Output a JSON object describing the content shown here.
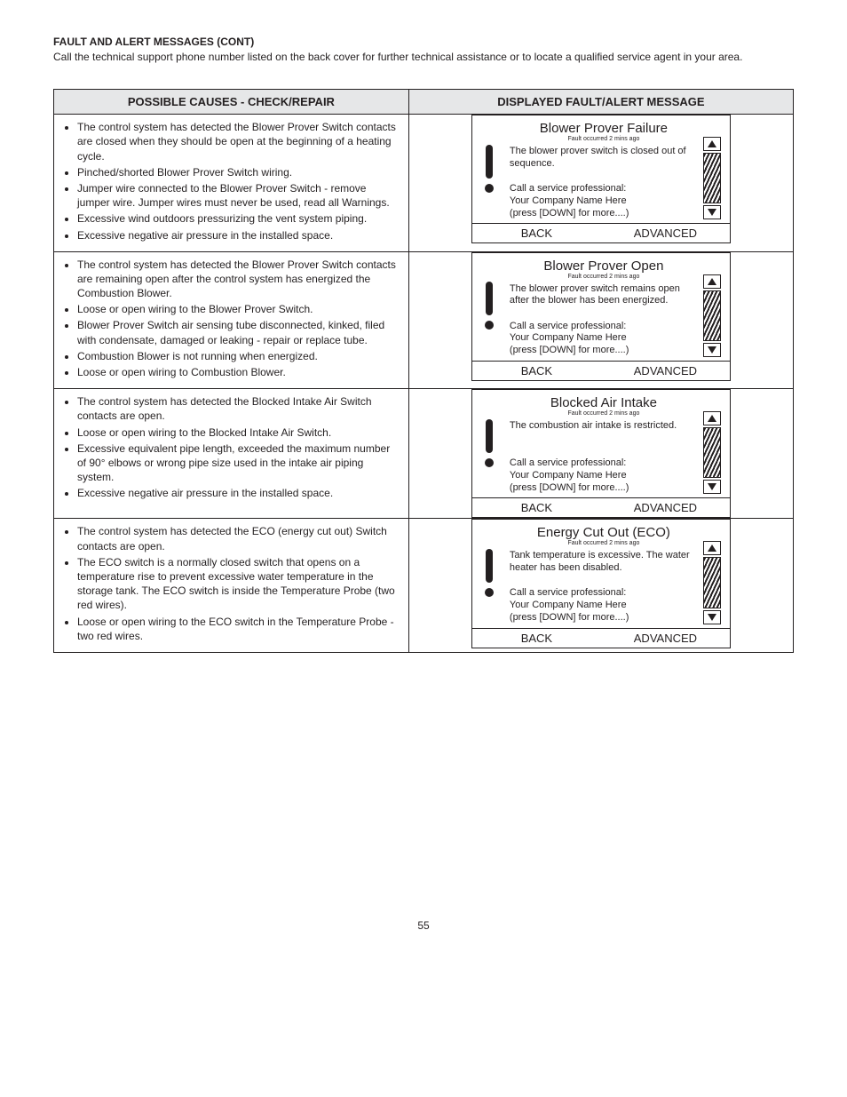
{
  "heading": "FAULT AND ALERT MESSAGES (CONT)",
  "intro": "Call the technical support phone number listed on the back cover for further technical assistance or to locate a qualified service agent in your area.",
  "table": {
    "headers": {
      "left": "POSSIBLE CAUSES - CHECK/REPAIR",
      "right": "DISPLAYED FAULT/ALERT MESSAGE"
    },
    "rows": [
      {
        "causes": [
          "The control system has detected the Blower Prover Switch contacts are closed when they should be open at the beginning of a heating cycle.",
          "Pinched/shorted Blower Prover Switch wiring.",
          "Jumper wire connected to the Blower Prover Switch - remove jumper wire. Jumper wires must never be used, read all Warnings.",
          "Excessive wind outdoors pressurizing the vent system piping.",
          "Excessive negative air pressure in the installed space."
        ],
        "lcd": {
          "title": "Blower Prover Failure",
          "sub": "Fault occurred 2 mins ago",
          "desc": "The blower prover switch is closed out of sequence.",
          "call1": "Call a service professional:",
          "call2": "Your Company Name Here",
          "call3": "(press [DOWN] for more....)",
          "back": "BACK",
          "advanced": "ADVANCED"
        }
      },
      {
        "causes": [
          "The control system has detected the Blower Prover Switch contacts are remaining open after the control system has energized the Combustion Blower.",
          "Loose or open wiring to the Blower Prover Switch.",
          "Blower Prover Switch air sensing tube disconnected, kinked, filed with condensate, damaged or leaking - repair or replace tube.",
          "Combustion Blower is not running when energized.",
          "Loose or open wiring to Combustion Blower."
        ],
        "lcd": {
          "title": "Blower Prover Open",
          "sub": "Fault occurred 2 mins ago",
          "desc": "The blower prover switch remains open after the blower has been energized.",
          "call1": "Call a service professional:",
          "call2": "Your Company Name Here",
          "call3": "(press [DOWN] for more....)",
          "back": "BACK",
          "advanced": "ADVANCED"
        }
      },
      {
        "causes": [
          "The control system has detected the Blocked Intake Air Switch contacts are open.",
          "Loose or open wiring to the Blocked Intake Air Switch.",
          "Excessive equivalent pipe length, exceeded the maximum number of 90° elbows or wrong pipe size used in the intake air piping system.",
          "Excessive negative air pressure in the installed space."
        ],
        "lcd": {
          "title": "Blocked Air Intake",
          "sub": "Fault occurred 2 mins ago",
          "desc": "The combustion air intake is restricted.",
          "call1": "Call a service professional:",
          "call2": "Your Company Name Here",
          "call3": "(press [DOWN] for more....)",
          "back": "BACK",
          "advanced": "ADVANCED"
        }
      },
      {
        "causes": [
          "The control system has detected the ECO (energy cut out) Switch contacts are open.",
          "The ECO switch is a normally closed switch that opens on a temperature rise to prevent excessive water temperature in the storage tank. The ECO switch is inside the Temperature Probe (two red wires).",
          "Loose or open wiring to the ECO switch in the Temperature Probe - two red wires."
        ],
        "lcd": {
          "title": "Energy Cut Out (ECO)",
          "sub": "Fault occurred 2 mins ago",
          "desc": "Tank temperature is excessive. The water heater has been disabled.",
          "call1": "Call a service professional:",
          "call2": "Your Company Name Here",
          "call3": "(press [DOWN] for more....)",
          "back": "BACK",
          "advanced": "ADVANCED"
        }
      }
    ]
  },
  "pagenum": "55",
  "colors": {
    "text": "#231f20",
    "header_bg": "#e6e7e8",
    "border": "#231f20",
    "background": "#ffffff"
  }
}
